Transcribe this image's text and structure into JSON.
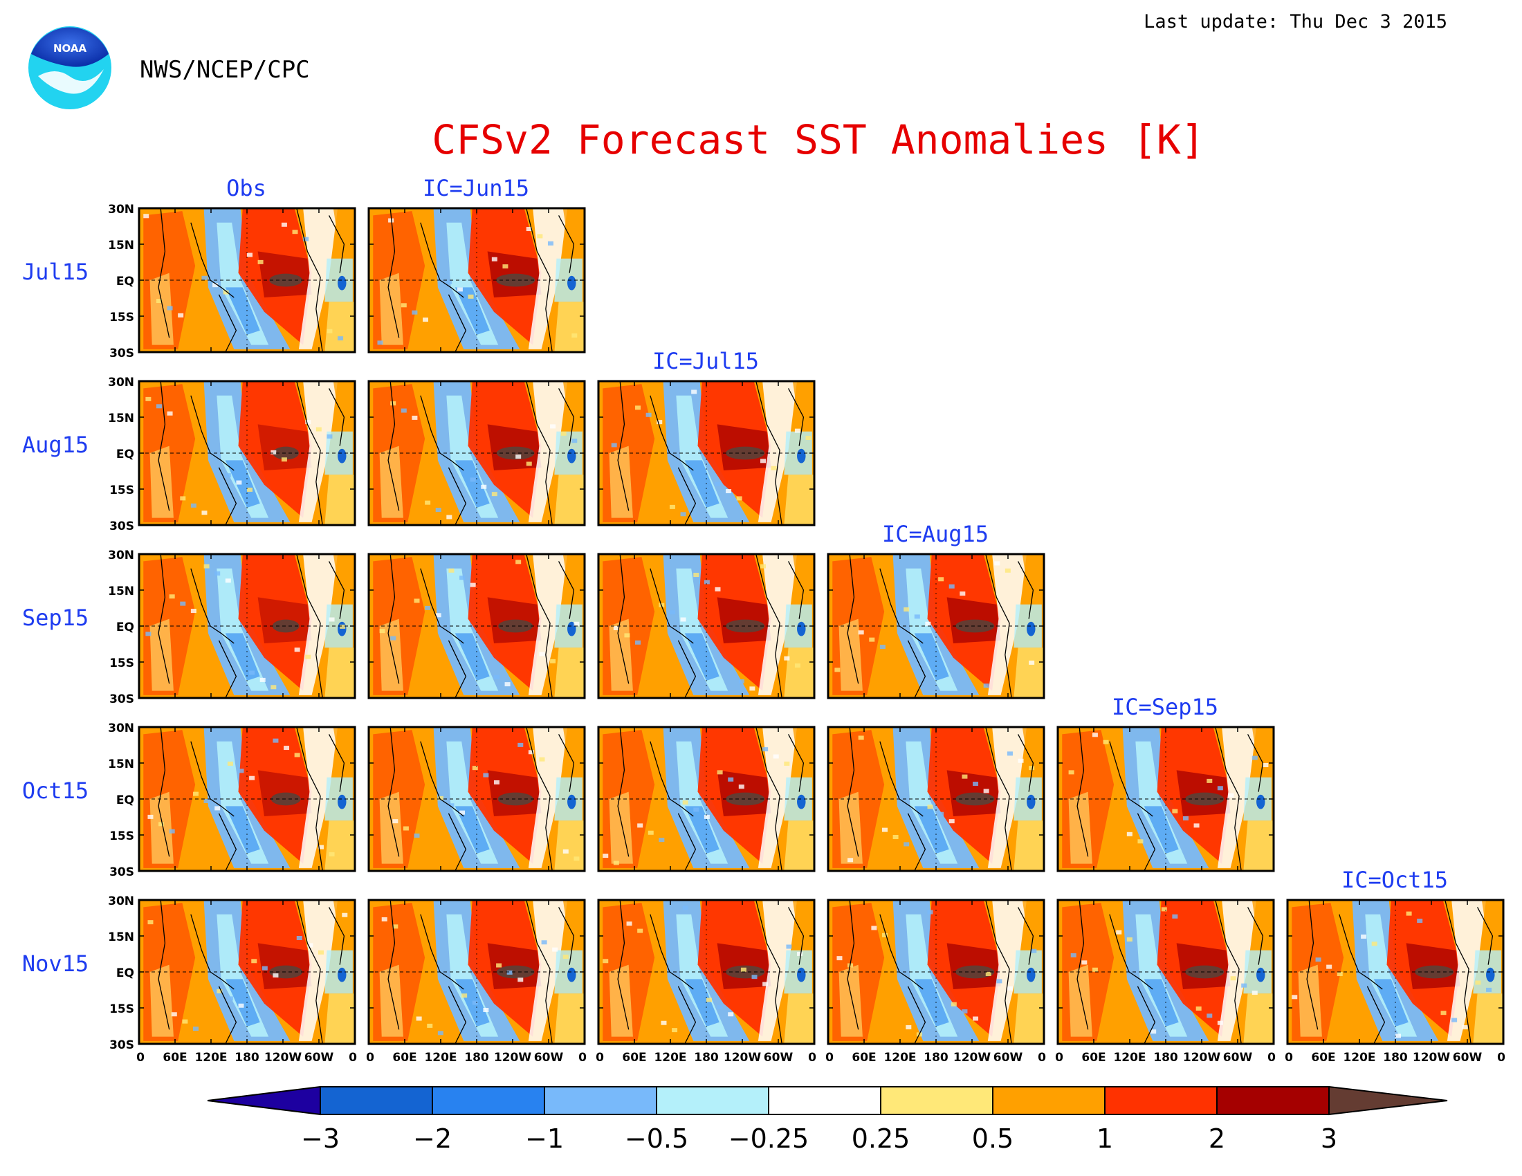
{
  "header": {
    "last_update": "Last update: Thu Dec  3 2015",
    "agency": "NWS/NCEP/CPC",
    "logo_text": "NOAA"
  },
  "title": "CFSv2 Forecast SST Anomalies [K]",
  "columns": [
    "Obs",
    "IC=Jun15",
    "IC=Jul15",
    "IC=Aug15",
    "IC=Sep15",
    "IC=Oct15"
  ],
  "rows": [
    "Jul15",
    "Aug15",
    "Sep15",
    "Oct15",
    "Nov15"
  ],
  "lat_ticks": [
    "30N",
    "15N",
    "EQ",
    "15S",
    "30S"
  ],
  "lon_ticks": [
    "0",
    "60E",
    "120E",
    "180",
    "120W",
    "60W",
    "0"
  ],
  "colorbar": {
    "labels": [
      "−3",
      "−2",
      "−1",
      "−0.5",
      "−0.25",
      "0.25",
      "0.5",
      "1",
      "2",
      "3"
    ],
    "colors": [
      "#1d00a0",
      "#1464d2",
      "#2882f0",
      "#78b9fa",
      "#b4f0fa",
      "#ffffff",
      "#ffe878",
      "#ffa000",
      "#ff3200",
      "#a50000",
      "#643c32"
    ]
  }
}
